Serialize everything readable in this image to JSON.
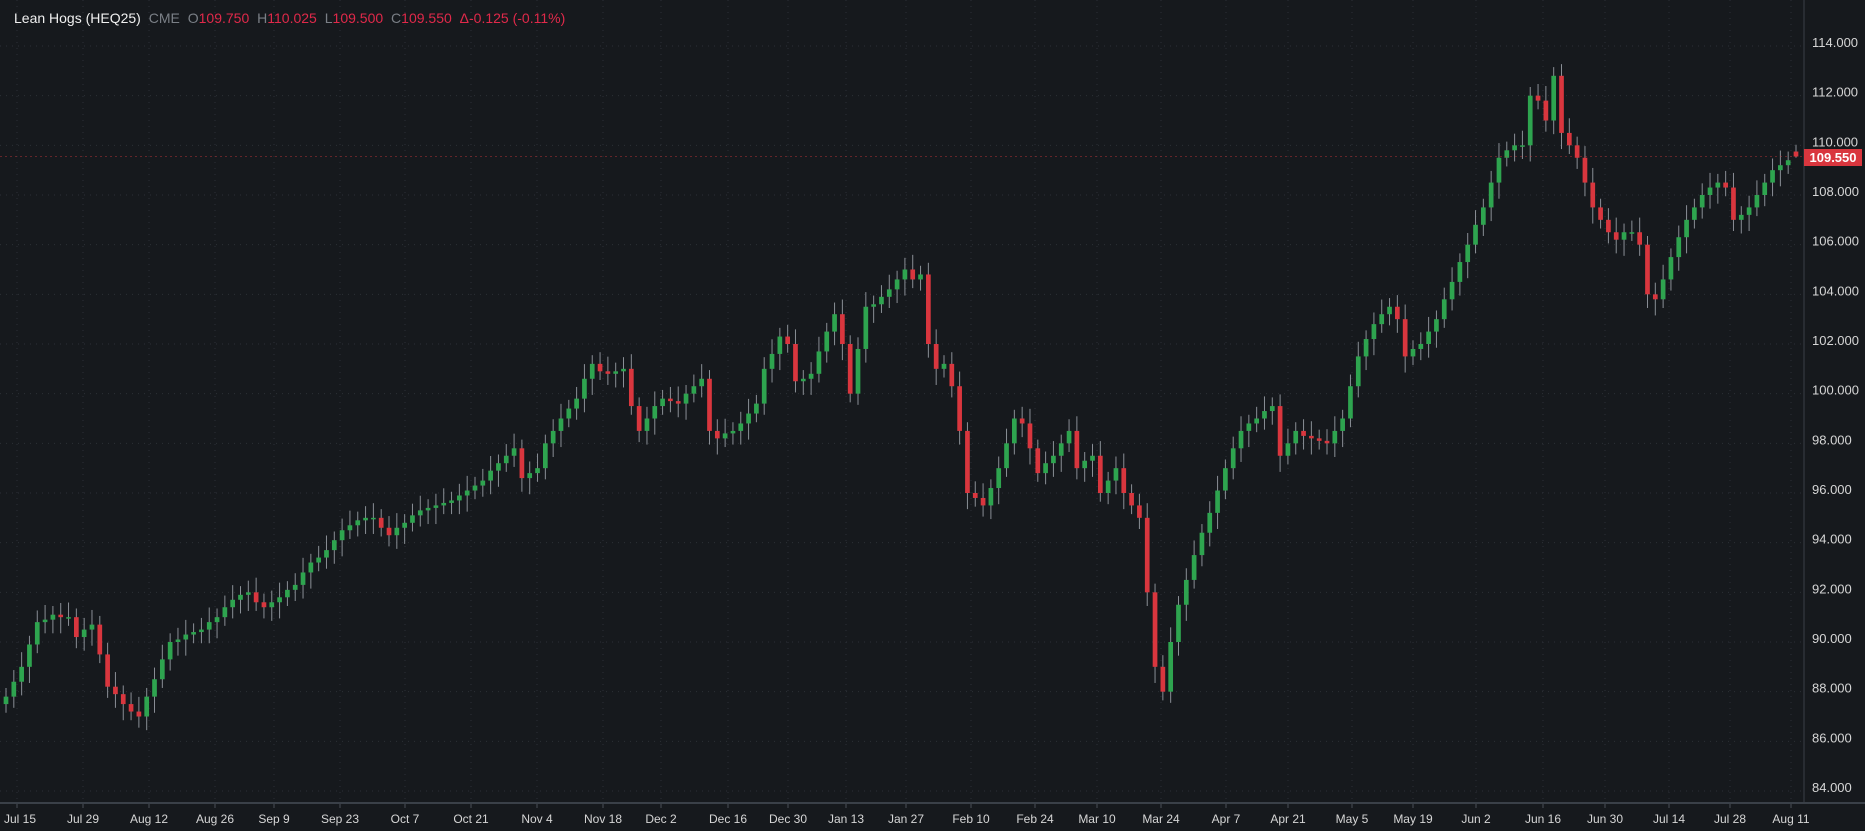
{
  "header": {
    "symbol": "Lean Hogs (HEQ25)",
    "exchange": "CME",
    "open_label": "O",
    "open": "109.750",
    "high_label": "H",
    "high": "110.025",
    "low_label": "L",
    "low": "109.500",
    "close_label": "C",
    "close": "109.550",
    "change": "Δ-0.125 (-0.11%)"
  },
  "last_price_label": "109.550",
  "colors": {
    "background": "#16191d",
    "up": "#2ea44f",
    "down": "#d9363e",
    "grid": "#2c3036",
    "axis_text": "#d6d6d6",
    "header_value": "#e0294a"
  },
  "chart_data": {
    "type": "candlestick",
    "title": "Lean Hogs (HEQ25)",
    "ylim": [
      84,
      114
    ],
    "y_ticks": [
      "84.000",
      "86.000",
      "88.000",
      "90.000",
      "92.000",
      "94.000",
      "96.000",
      "98.000",
      "100.000",
      "102.000",
      "104.000",
      "106.000",
      "108.000",
      "110.000",
      "112.000",
      "114.000"
    ],
    "x_ticks": [
      "Jul 15",
      "Jul 29",
      "Aug 12",
      "Aug 26",
      "Sep 9",
      "Sep 23",
      "Oct 7",
      "Oct 21",
      "Nov 4",
      "Nov 18",
      "Dec 2",
      "Dec 16",
      "Dec 30",
      "Jan 13",
      "Jan 27",
      "Feb 10",
      "Feb 24",
      "Mar 10",
      "Mar 24",
      "Apr 7",
      "Apr 21",
      "May 5",
      "May 19",
      "Jun 2",
      "Jun 16",
      "Jun 30",
      "Jul 14",
      "Jul 28",
      "Aug 11"
    ],
    "grid": true,
    "first_open": 87.5,
    "last_bar": {
      "open": 109.75,
      "high": 110.025,
      "low": 109.5,
      "close": 109.55
    },
    "closes": [
      87.8,
      88.4,
      89.0,
      89.9,
      90.8,
      90.9,
      91.1,
      91.0,
      91.0,
      90.2,
      90.5,
      90.7,
      89.5,
      88.2,
      87.9,
      87.5,
      87.2,
      87.0,
      87.8,
      88.5,
      89.3,
      90.0,
      90.1,
      90.3,
      90.4,
      90.5,
      90.8,
      91.0,
      91.4,
      91.7,
      91.9,
      92.0,
      91.6,
      91.4,
      91.6,
      91.8,
      92.1,
      92.3,
      92.8,
      93.2,
      93.4,
      93.7,
      94.1,
      94.5,
      94.7,
      94.9,
      95.0,
      95.0,
      94.6,
      94.3,
      94.6,
      94.8,
      95.1,
      95.3,
      95.4,
      95.5,
      95.6,
      95.7,
      95.9,
      96.1,
      96.3,
      96.5,
      96.9,
      97.2,
      97.5,
      97.8,
      96.6,
      96.8,
      97.0,
      98.0,
      98.5,
      99.0,
      99.4,
      99.8,
      100.6,
      101.2,
      100.9,
      100.8,
      100.9,
      101.0,
      99.5,
      98.5,
      99.0,
      99.5,
      99.8,
      99.7,
      99.6,
      100.0,
      100.3,
      100.6,
      98.5,
      98.2,
      98.4,
      98.5,
      98.8,
      99.2,
      99.6,
      101.0,
      101.6,
      102.3,
      102.0,
      100.5,
      100.6,
      100.8,
      101.7,
      102.5,
      103.2,
      102.0,
      100.0,
      101.8,
      103.5,
      103.6,
      103.9,
      104.2,
      104.6,
      105.0,
      104.6,
      104.8,
      102.0,
      101.0,
      101.2,
      100.3,
      98.5,
      96.0,
      95.8,
      95.5,
      96.2,
      97.0,
      98.0,
      99.0,
      98.8,
      97.8,
      96.8,
      97.2,
      97.5,
      98.0,
      98.5,
      97.0,
      97.3,
      97.5,
      96.0,
      96.5,
      97.0,
      96.0,
      95.5,
      95.0,
      92.0,
      89.0,
      88.0,
      90.0,
      91.5,
      92.5,
      93.5,
      94.4,
      95.2,
      96.1,
      97.0,
      97.8,
      98.5,
      98.8,
      99.0,
      99.3,
      99.5,
      97.5,
      98.0,
      98.5,
      98.3,
      98.2,
      98.1,
      98.0,
      98.5,
      99.0,
      100.3,
      101.5,
      102.2,
      102.8,
      103.2,
      103.5,
      103.0,
      101.5,
      101.8,
      102.0,
      102.5,
      103.0,
      103.8,
      104.5,
      105.3,
      106.0,
      106.8,
      107.5,
      108.5,
      109.5,
      109.8,
      110.0,
      110.0,
      112.0,
      111.8,
      111.0,
      112.8,
      110.5,
      110.0,
      109.5,
      108.5,
      107.5,
      107.0,
      106.5,
      106.2,
      106.5,
      106.5,
      106.0,
      104.0,
      103.8,
      104.6,
      105.5,
      106.3,
      107.0,
      107.5,
      108.0,
      108.3,
      108.5,
      108.3,
      107.0,
      107.2,
      107.5,
      108.0,
      108.5,
      109.0,
      109.2,
      109.4,
      109.55
    ]
  }
}
